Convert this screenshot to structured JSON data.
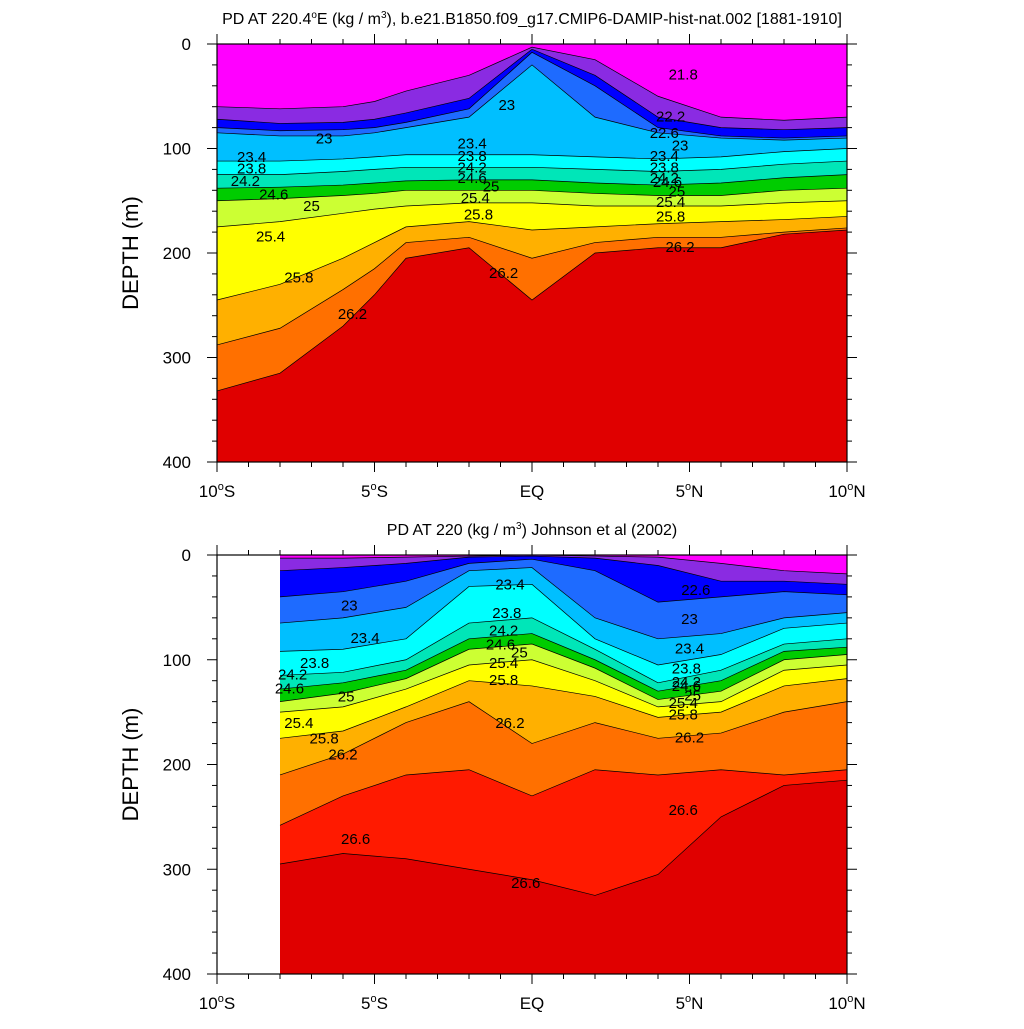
{
  "chart_data": [
    {
      "type": "heatmap",
      "title": "PD AT 220.4°E (kg / m³), b.e21.B1850.f09_g17.CMIP6-DAMIP-hist-nat.002 [1881-1910]",
      "title_parts": {
        "pre": "PD AT 220.4",
        "deg": "o",
        "mid": "E (kg / m",
        "sup": "3",
        "post": "), b.e21.B1850.f09_g17.CMIP6-DAMIP-hist-nat.002 [1881-1910]"
      },
      "ylabel": "DEPTH (m)",
      "xlabel": "",
      "xlim": [
        -10,
        10
      ],
      "ylim": [
        400,
        0
      ],
      "y_reversed": true,
      "grid": false,
      "legend": "none",
      "x_ticks": [
        {
          "value": -10,
          "num": "10",
          "hemi": "S"
        },
        {
          "value": -5,
          "num": "5",
          "hemi": "S"
        },
        {
          "value": 0,
          "num": "EQ",
          "hemi": ""
        },
        {
          "value": 5,
          "num": "5",
          "hemi": "N"
        },
        {
          "value": 10,
          "num": "10",
          "hemi": "N"
        }
      ],
      "y_ticks": [
        0,
        100,
        200,
        300,
        400
      ],
      "data_xrange": [
        -10,
        10
      ],
      "isopycnals": [
        {
          "level": 26.2,
          "x": [
            -10,
            -8,
            -6,
            -5,
            -4,
            -2,
            0,
            2,
            4,
            6,
            8,
            10
          ],
          "depth": [
            332,
            315,
            270,
            240,
            205,
            195,
            245,
            200,
            195,
            195,
            182,
            178
          ]
        },
        {
          "level": 25.8,
          "x": [
            -10,
            -8,
            -6,
            -5,
            -4,
            -2,
            0,
            2,
            4,
            6,
            8,
            10
          ],
          "depth": [
            288,
            272,
            235,
            215,
            190,
            185,
            205,
            190,
            185,
            185,
            180,
            176
          ]
        },
        {
          "level": 25.4,
          "x": [
            -10,
            -8,
            -6,
            -5,
            -4,
            -2,
            0,
            2,
            4,
            6,
            8,
            10
          ],
          "depth": [
            245,
            230,
            205,
            190,
            175,
            170,
            178,
            175,
            172,
            170,
            168,
            165
          ]
        },
        {
          "level": 25.0,
          "x": [
            -10,
            -8,
            -6,
            -5,
            -4,
            -2,
            0,
            2,
            4,
            6,
            8,
            10
          ],
          "depth": [
            175,
            170,
            162,
            158,
            155,
            152,
            152,
            155,
            155,
            155,
            152,
            150
          ]
        },
        {
          "level": 24.6,
          "x": [
            -10,
            -8,
            -6,
            -5,
            -4,
            -2,
            0,
            2,
            4,
            6,
            8,
            10
          ],
          "depth": [
            150,
            148,
            145,
            143,
            140,
            140,
            140,
            143,
            145,
            145,
            140,
            138
          ]
        },
        {
          "level": 24.2,
          "x": [
            -10,
            -8,
            -6,
            -5,
            -4,
            -2,
            0,
            2,
            4,
            6,
            8,
            10
          ],
          "depth": [
            138,
            137,
            135,
            133,
            131,
            130,
            130,
            133,
            135,
            133,
            128,
            125
          ]
        },
        {
          "level": 23.8,
          "x": [
            -10,
            -8,
            -6,
            -5,
            -4,
            -2,
            0,
            2,
            4,
            6,
            8,
            10
          ],
          "depth": [
            125,
            125,
            122,
            120,
            118,
            118,
            118,
            120,
            122,
            120,
            115,
            112
          ]
        },
        {
          "level": 23.4,
          "x": [
            -10,
            -8,
            -6,
            -5,
            -4,
            -2,
            0,
            2,
            4,
            6,
            8,
            10
          ],
          "depth": [
            112,
            112,
            110,
            108,
            106,
            106,
            106,
            108,
            110,
            108,
            103,
            100
          ]
        },
        {
          "level": 23.0,
          "x": [
            -10,
            -8,
            -6,
            -5,
            -4,
            -2,
            0,
            2,
            4,
            6,
            8,
            10
          ],
          "depth": [
            85,
            88,
            88,
            85,
            80,
            70,
            20,
            70,
            85,
            90,
            92,
            90
          ]
        },
        {
          "level": 22.6,
          "x": [
            -10,
            -8,
            -6,
            -5,
            -4,
            -2,
            0,
            2,
            4,
            6,
            8,
            10
          ],
          "depth": [
            80,
            83,
            82,
            80,
            75,
            62,
            8,
            40,
            80,
            88,
            90,
            88
          ]
        },
        {
          "level": 22.2,
          "x": [
            -10,
            -8,
            -6,
            -5,
            -4,
            -2,
            0,
            2,
            4,
            6,
            8,
            10
          ],
          "depth": [
            72,
            76,
            75,
            72,
            66,
            52,
            5,
            30,
            70,
            80,
            82,
            80
          ]
        },
        {
          "level": 21.8,
          "x": [
            -10,
            -8,
            -6,
            -5,
            -4,
            -2,
            0,
            2,
            4,
            6,
            8,
            10
          ],
          "depth": [
            60,
            62,
            60,
            55,
            45,
            30,
            3,
            15,
            50,
            70,
            73,
            70
          ]
        }
      ],
      "contour_labels": [
        {
          "text": "23",
          "x": -6.6,
          "depth": 95
        },
        {
          "text": "23",
          "x": -0.8,
          "depth": 63
        },
        {
          "text": "23.4",
          "x": -8.9,
          "depth": 113
        },
        {
          "text": "23.8",
          "x": -8.9,
          "depth": 124
        },
        {
          "text": "24.2",
          "x": -9.1,
          "depth": 136
        },
        {
          "text": "24.6",
          "x": -8.2,
          "depth": 149
        },
        {
          "text": "25",
          "x": -7.0,
          "depth": 160
        },
        {
          "text": "25.4",
          "x": -8.3,
          "depth": 189
        },
        {
          "text": "25.8",
          "x": -7.4,
          "depth": 228
        },
        {
          "text": "26.2",
          "x": -5.7,
          "depth": 263
        },
        {
          "text": "23.4",
          "x": -1.9,
          "depth": 100
        },
        {
          "text": "23.8",
          "x": -1.9,
          "depth": 112
        },
        {
          "text": "24.2",
          "x": -1.9,
          "depth": 123
        },
        {
          "text": "24.6",
          "x": -1.9,
          "depth": 133
        },
        {
          "text": "25",
          "x": -1.3,
          "depth": 141
        },
        {
          "text": "25.4",
          "x": -1.8,
          "depth": 152
        },
        {
          "text": "25.8",
          "x": -1.7,
          "depth": 168
        },
        {
          "text": "26.2",
          "x": -0.9,
          "depth": 224
        },
        {
          "text": "21.8",
          "x": 4.8,
          "depth": 34
        },
        {
          "text": "22.2",
          "x": 4.4,
          "depth": 74
        },
        {
          "text": "22.6",
          "x": 4.2,
          "depth": 90
        },
        {
          "text": "23",
          "x": 4.7,
          "depth": 102
        },
        {
          "text": "23.4",
          "x": 4.2,
          "depth": 112
        },
        {
          "text": "23.8",
          "x": 4.2,
          "depth": 123
        },
        {
          "text": "24.2",
          "x": 4.2,
          "depth": 133
        },
        {
          "text": "24.6",
          "x": 4.3,
          "depth": 137
        },
        {
          "text": "25",
          "x": 4.6,
          "depth": 146
        },
        {
          "text": "25.4",
          "x": 4.4,
          "depth": 156
        },
        {
          "text": "25.8",
          "x": 4.4,
          "depth": 170
        },
        {
          "text": "26.2",
          "x": 4.7,
          "depth": 199
        }
      ]
    },
    {
      "type": "heatmap",
      "title": "PD AT 220 (kg / m³) Johnson et al (2002)",
      "title_parts": {
        "pre": "PD AT 220 (kg / m",
        "deg": "",
        "mid": "",
        "sup": "3",
        "post": ") Johnson et al (2002)"
      },
      "ylabel": "DEPTH (m)",
      "xlabel": "",
      "xlim": [
        -10,
        10
      ],
      "ylim": [
        400,
        0
      ],
      "y_reversed": true,
      "grid": false,
      "legend": "none",
      "x_ticks": [
        {
          "value": -10,
          "num": "10",
          "hemi": "S"
        },
        {
          "value": -5,
          "num": "5",
          "hemi": "S"
        },
        {
          "value": 0,
          "num": "EQ",
          "hemi": ""
        },
        {
          "value": 5,
          "num": "5",
          "hemi": "N"
        },
        {
          "value": 10,
          "num": "10",
          "hemi": "N"
        }
      ],
      "y_ticks": [
        0,
        100,
        200,
        300,
        400
      ],
      "data_xrange": [
        -8,
        10
      ],
      "isopycnals": [
        {
          "level": 26.6,
          "x": [
            -8,
            -6,
            -4,
            -2,
            0,
            2,
            4,
            6,
            8,
            10
          ],
          "depth": [
            295,
            285,
            290,
            300,
            310,
            325,
            305,
            250,
            220,
            215
          ]
        },
        {
          "level": 26.2,
          "x": [
            -8,
            -6,
            -4,
            -2,
            0,
            2,
            4,
            6,
            8,
            10
          ],
          "depth": [
            258,
            230,
            210,
            205,
            230,
            205,
            210,
            205,
            210,
            205
          ]
        },
        {
          "level": 25.8,
          "x": [
            -8,
            -6,
            -4,
            -2,
            0,
            2,
            4,
            6,
            8,
            10
          ],
          "depth": [
            210,
            190,
            160,
            140,
            180,
            160,
            175,
            170,
            150,
            140
          ]
        },
        {
          "level": 25.4,
          "x": [
            -8,
            -6,
            -4,
            -2,
            0,
            2,
            4,
            6,
            8,
            10
          ],
          "depth": [
            175,
            168,
            145,
            120,
            125,
            135,
            155,
            150,
            125,
            118
          ]
        },
        {
          "level": 25.0,
          "x": [
            -8,
            -6,
            -4,
            -2,
            0,
            2,
            4,
            6,
            8,
            10
          ],
          "depth": [
            150,
            145,
            128,
            105,
            100,
            120,
            145,
            140,
            110,
            105
          ]
        },
        {
          "level": 24.6,
          "x": [
            -8,
            -6,
            -4,
            -2,
            0,
            2,
            4,
            6,
            8,
            10
          ],
          "depth": [
            140,
            132,
            118,
            90,
            85,
            108,
            138,
            130,
            100,
            95
          ]
        },
        {
          "level": 24.2,
          "x": [
            -8,
            -6,
            -4,
            -2,
            0,
            2,
            4,
            6,
            8,
            10
          ],
          "depth": [
            128,
            122,
            110,
            80,
            75,
            100,
            130,
            120,
            92,
            88
          ]
        },
        {
          "level": 23.8,
          "x": [
            -8,
            -6,
            -4,
            -2,
            0,
            2,
            4,
            6,
            8,
            10
          ],
          "depth": [
            115,
            112,
            100,
            65,
            60,
            90,
            122,
            110,
            85,
            80
          ]
        },
        {
          "level": 23.4,
          "x": [
            -8,
            -6,
            -4,
            -2,
            0,
            2,
            4,
            6,
            8,
            10
          ],
          "depth": [
            92,
            90,
            80,
            30,
            28,
            80,
            105,
            95,
            70,
            65
          ]
        },
        {
          "level": 23.0,
          "x": [
            -8,
            -6,
            -4,
            -2,
            0,
            2,
            4,
            6,
            8,
            10
          ],
          "depth": [
            65,
            60,
            50,
            15,
            12,
            60,
            80,
            75,
            60,
            55
          ]
        },
        {
          "level": 22.6,
          "x": [
            -8,
            -6,
            -4,
            -2,
            0,
            2,
            4,
            6,
            8,
            10
          ],
          "depth": [
            40,
            35,
            25,
            8,
            4,
            15,
            45,
            40,
            35,
            38
          ]
        },
        {
          "level": 22.2,
          "x": [
            -8,
            -6,
            -4,
            -2,
            0,
            2,
            4,
            6,
            8,
            10
          ],
          "depth": [
            15,
            12,
            8,
            2,
            1,
            3,
            10,
            25,
            25,
            28
          ]
        },
        {
          "level": 21.8,
          "x": [
            -8,
            -6,
            -4,
            -2,
            0,
            2,
            4,
            6,
            8,
            10
          ],
          "depth": [
            3,
            3,
            2,
            1,
            0,
            1,
            2,
            8,
            15,
            18
          ]
        }
      ],
      "contour_labels": [
        {
          "text": "23",
          "x": -5.8,
          "depth": 53
        },
        {
          "text": "23.4",
          "x": -5.3,
          "depth": 84
        },
        {
          "text": "23.8",
          "x": -6.9,
          "depth": 108
        },
        {
          "text": "24.2",
          "x": -7.6,
          "depth": 119
        },
        {
          "text": "24.6",
          "x": -7.7,
          "depth": 132
        },
        {
          "text": "25",
          "x": -5.9,
          "depth": 140
        },
        {
          "text": "25.4",
          "x": -7.4,
          "depth": 165
        },
        {
          "text": "25.8",
          "x": -6.6,
          "depth": 180
        },
        {
          "text": "26.2",
          "x": -6.0,
          "depth": 195
        },
        {
          "text": "26.6",
          "x": -5.6,
          "depth": 276
        },
        {
          "text": "23.4",
          "x": -0.7,
          "depth": 33
        },
        {
          "text": "23.8",
          "x": -0.8,
          "depth": 60
        },
        {
          "text": "24.2",
          "x": -0.9,
          "depth": 77
        },
        {
          "text": "24.6",
          "x": -1.0,
          "depth": 90
        },
        {
          "text": "25",
          "x": -0.4,
          "depth": 98
        },
        {
          "text": "25.4",
          "x": -0.9,
          "depth": 108
        },
        {
          "text": "25.8",
          "x": -0.9,
          "depth": 124
        },
        {
          "text": "26.2",
          "x": -0.7,
          "depth": 165
        },
        {
          "text": "26.6",
          "x": -0.2,
          "depth": 318
        },
        {
          "text": "22.6",
          "x": 5.2,
          "depth": 38
        },
        {
          "text": "23",
          "x": 5.0,
          "depth": 66
        },
        {
          "text": "23.4",
          "x": 5.0,
          "depth": 94
        },
        {
          "text": "23.8",
          "x": 4.9,
          "depth": 113
        },
        {
          "text": "24.2",
          "x": 4.9,
          "depth": 126
        },
        {
          "text": "24.6",
          "x": 4.9,
          "depth": 130
        },
        {
          "text": "25",
          "x": 5.1,
          "depth": 139
        },
        {
          "text": "25.4",
          "x": 4.8,
          "depth": 146
        },
        {
          "text": "25.8",
          "x": 4.8,
          "depth": 157
        },
        {
          "text": "26.2",
          "x": 5.0,
          "depth": 179
        },
        {
          "text": "26.6",
          "x": 4.8,
          "depth": 248
        }
      ]
    }
  ]
}
